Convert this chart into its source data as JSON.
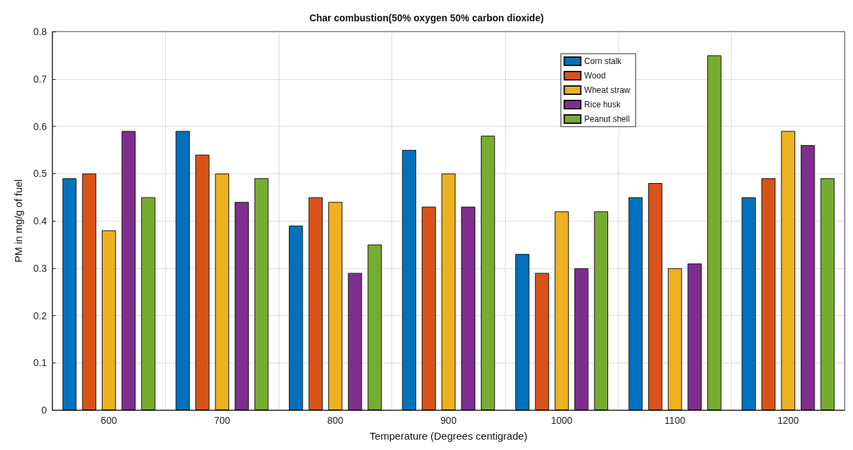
{
  "chart_data": {
    "type": "bar",
    "title": "Char combustion(50% oxygen 50% carbon dioxide)",
    "xlabel": "Temperature (Degrees centigrade)",
    "ylabel": "PM in mg/g of fuel",
    "categories": [
      "600",
      "700",
      "800",
      "900",
      "1000",
      "1100",
      "1200"
    ],
    "series": [
      {
        "name": "Corn stalk",
        "color": "#0072bd",
        "values": [
          0.49,
          0.59,
          0.39,
          0.55,
          0.33,
          0.45,
          0.45
        ]
      },
      {
        "name": "Wood",
        "color": "#d95319",
        "values": [
          0.5,
          0.54,
          0.45,
          0.43,
          0.29,
          0.48,
          0.49
        ]
      },
      {
        "name": "Wheat straw",
        "color": "#edb120",
        "values": [
          0.38,
          0.5,
          0.44,
          0.5,
          0.42,
          0.3,
          0.59
        ]
      },
      {
        "name": "Rice husk",
        "color": "#7e2f8e",
        "values": [
          0.59,
          0.44,
          0.29,
          0.43,
          0.3,
          0.31,
          0.56
        ]
      },
      {
        "name": "Peanut shell",
        "color": "#77ac30",
        "values": [
          0.45,
          0.49,
          0.35,
          0.58,
          0.42,
          0.75,
          0.49
        ]
      }
    ],
    "ylim": [
      0,
      0.8
    ],
    "yticks": [
      0,
      0.1,
      0.2,
      0.3,
      0.4,
      0.5,
      0.6,
      0.7,
      0.8
    ],
    "grid": true,
    "legend": "top right"
  }
}
